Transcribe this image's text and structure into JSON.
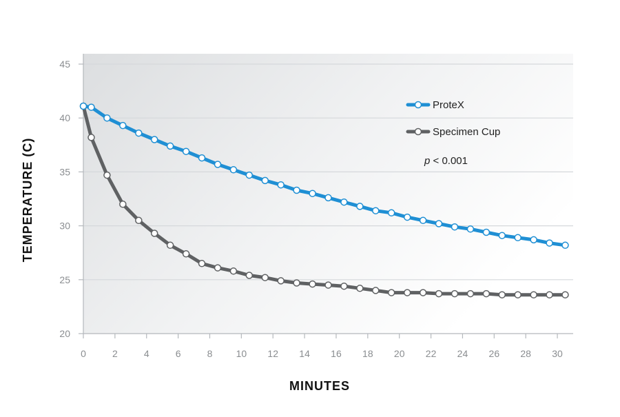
{
  "chart_data": {
    "type": "line",
    "title": "",
    "xlabel": "MINUTES",
    "ylabel": "TEMPERATURE (C)",
    "xlim": [
      0,
      31
    ],
    "ylim": [
      20,
      45
    ],
    "x_ticks": [
      0,
      2,
      4,
      6,
      8,
      10,
      12,
      14,
      16,
      18,
      20,
      22,
      24,
      26,
      28,
      30
    ],
    "y_ticks": [
      20,
      25,
      30,
      35,
      40,
      45
    ],
    "grid": "horizontal",
    "legend_position": "upper-right",
    "annotation": {
      "italic": "p",
      "rest": " < 0.001"
    },
    "series": [
      {
        "name": "ProteX",
        "color": "#1f8fd4",
        "x": [
          0,
          0.5,
          1.5,
          2.5,
          3.5,
          4.5,
          5.5,
          6.5,
          7.5,
          8.5,
          9.5,
          10.5,
          11.5,
          12.5,
          13.5,
          14.5,
          15.5,
          16.5,
          17.5,
          18.5,
          19.5,
          20.5,
          21.5,
          22.5,
          23.5,
          24.5,
          25.5,
          26.5,
          27.5,
          28.5,
          29.5,
          30.5
        ],
        "y": [
          41.1,
          41.0,
          40.0,
          39.3,
          38.6,
          38.0,
          37.4,
          36.9,
          36.3,
          35.7,
          35.2,
          34.7,
          34.2,
          33.8,
          33.3,
          33.0,
          32.6,
          32.2,
          31.8,
          31.4,
          31.2,
          30.8,
          30.5,
          30.2,
          29.9,
          29.7,
          29.4,
          29.1,
          28.9,
          28.7,
          28.4,
          28.2
        ]
      },
      {
        "name": "Specimen Cup",
        "color": "#5f6163",
        "x": [
          0,
          0.5,
          1.5,
          2.5,
          3.5,
          4.5,
          5.5,
          6.5,
          7.5,
          8.5,
          9.5,
          10.5,
          11.5,
          12.5,
          13.5,
          14.5,
          15.5,
          16.5,
          17.5,
          18.5,
          19.5,
          20.5,
          21.5,
          22.5,
          23.5,
          24.5,
          25.5,
          26.5,
          27.5,
          28.5,
          29.5,
          30.5
        ],
        "y": [
          41.1,
          38.2,
          34.7,
          32.0,
          30.5,
          29.3,
          28.2,
          27.4,
          26.5,
          26.1,
          25.8,
          25.4,
          25.2,
          24.9,
          24.7,
          24.6,
          24.5,
          24.4,
          24.2,
          24.0,
          23.8,
          23.8,
          23.8,
          23.7,
          23.7,
          23.7,
          23.7,
          23.6,
          23.6,
          23.6,
          23.6,
          23.6
        ]
      }
    ]
  }
}
